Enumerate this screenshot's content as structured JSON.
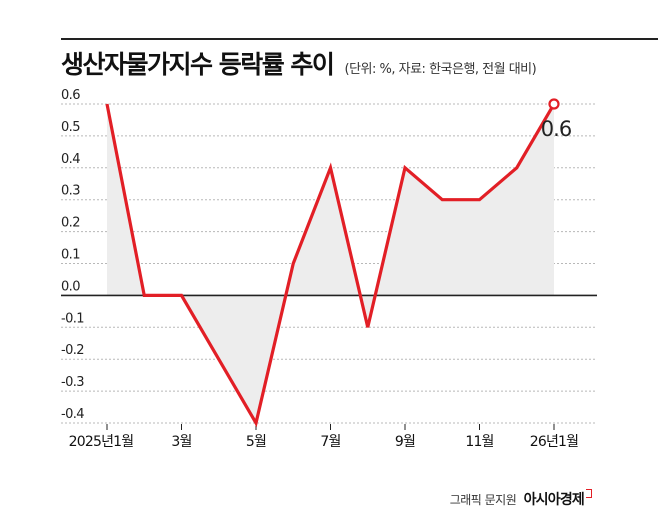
{
  "header": {
    "title": "생산자물가지수 등락률 추이",
    "subtitle": "(단위: %, 자료: 한국은행, 전월 대비)"
  },
  "credit": {
    "byline": "그래픽 문지원",
    "brand": "아시아경제"
  },
  "colors": {
    "line": "#e21f26",
    "area": "#ededed",
    "grid": "#b8b8b8",
    "zero_line": "#222222"
  },
  "chart_data": {
    "type": "line",
    "title": "생산자물가지수 등락률 추이",
    "x": [
      "2025-01",
      "2025-02",
      "2025-03",
      "2025-04",
      "2025-05",
      "2025-06",
      "2025-07",
      "2025-08",
      "2025-09",
      "2025-10",
      "2025-11",
      "2025-12",
      "2026-01"
    ],
    "series": [
      {
        "values": [
          0.6,
          0.0,
          0.0,
          -0.2,
          -0.4,
          0.1,
          0.4,
          -0.1,
          0.4,
          0.3,
          0.3,
          0.4,
          0.6
        ]
      }
    ],
    "xtick_labels": [
      "2025년1월",
      "3월",
      "5월",
      "7월",
      "9월",
      "11월",
      "26년1월"
    ],
    "xtick_index": [
      0,
      2,
      4,
      6,
      8,
      10,
      12
    ],
    "yticks": [
      "0.6",
      "0.5",
      "0.4",
      "0.3",
      "0.2",
      "0.1",
      "0.0",
      "-0.1",
      "-0.2",
      "-0.3",
      "-0.4"
    ],
    "ylim": [
      -0.4,
      0.6
    ],
    "end_label": "0.6",
    "grid": true,
    "area_fill": true
  }
}
